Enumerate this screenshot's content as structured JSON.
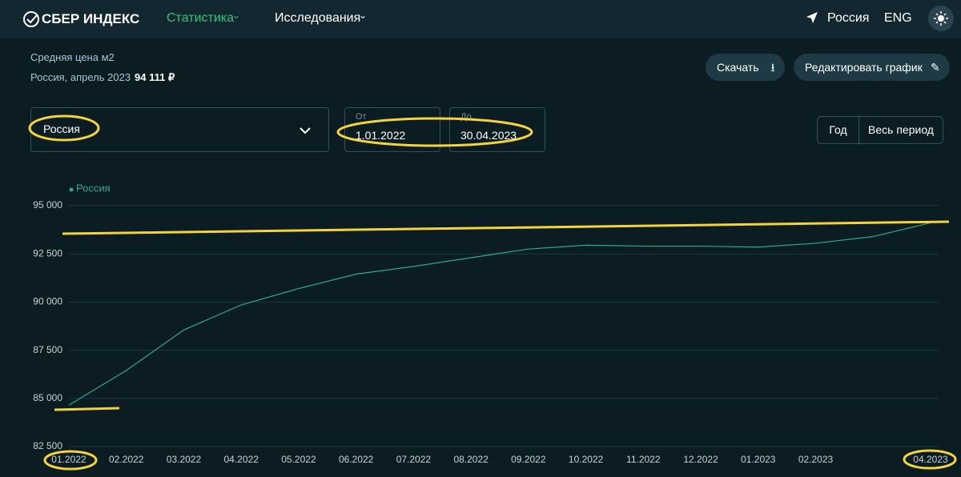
{
  "nav": {
    "logo": "СБЕР ИНДЕКС",
    "items": [
      "Статистика",
      "Исследования"
    ],
    "region": "Россия",
    "lang": "ENG"
  },
  "header": {
    "metric": "Средняя цена м2",
    "period": "Россия, апрель 2023",
    "value": "94 111 ₽"
  },
  "buttons": {
    "download": "Скачать",
    "edit": "Редактировать график"
  },
  "controls": {
    "region": "Россия",
    "from_label": "От",
    "from": "1.01.2022",
    "to_label": "До",
    "to": "30.04.2023",
    "periods": [
      "Год",
      "Весь период"
    ]
  },
  "chart_data": {
    "type": "line",
    "categories": [
      "01.2022",
      "02.2022",
      "03.2022",
      "04.2022",
      "05.2022",
      "06.2022",
      "07.2022",
      "08.2022",
      "09.2022",
      "10.2022",
      "11.2022",
      "12.2022",
      "01.2023",
      "02.2023",
      null,
      "04.2023"
    ],
    "series": [
      {
        "name": "Россия",
        "color": "#2fa98c",
        "values": [
          84650,
          86450,
          88550,
          89850,
          90700,
          91450,
          91850,
          92300,
          92750,
          92950,
          92900,
          92900,
          92850,
          93050,
          93400,
          94111
        ]
      }
    ],
    "ylim": [
      82500,
      95000
    ],
    "yticks": [
      {
        "value": 82500,
        "label": "82 500"
      },
      {
        "value": 85000,
        "label": "85 000"
      },
      {
        "value": 87500,
        "label": "87 500"
      },
      {
        "value": 90000,
        "label": "90 000"
      },
      {
        "value": 92500,
        "label": "92 500"
      },
      {
        "value": 95000,
        "label": "95 000"
      }
    ],
    "grid": true
  }
}
